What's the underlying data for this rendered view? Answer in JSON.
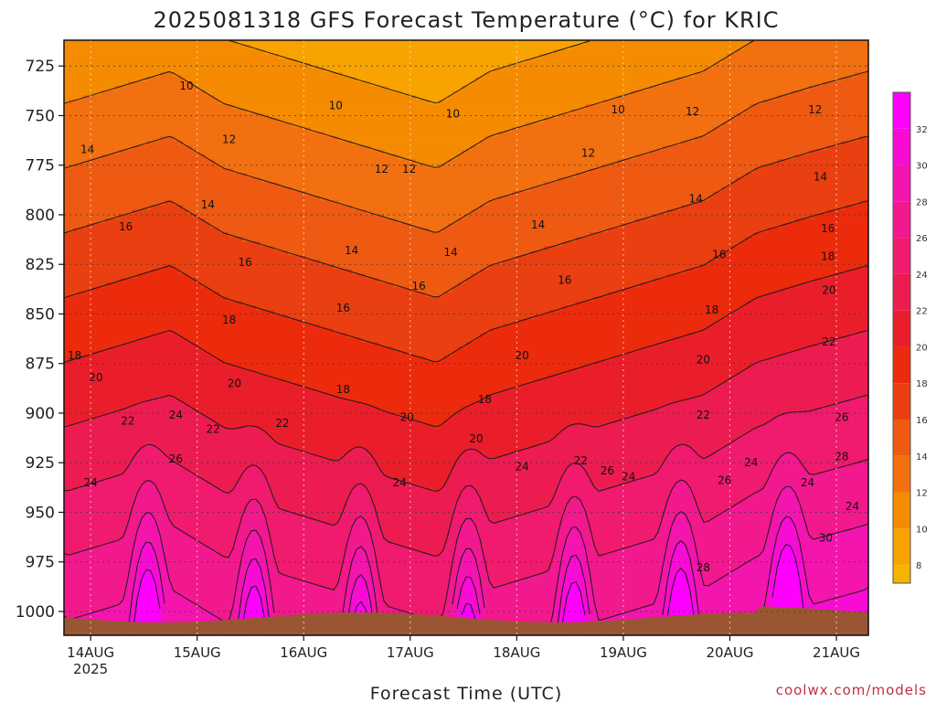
{
  "chart_data": {
    "type": "heatmap",
    "title": "2025081318 GFS Forecast Temperature (°C) for KRIC",
    "xlabel": "Forecast Time (UTC)",
    "ylabel": "",
    "credit": "coolwx.com/models",
    "y_axis": {
      "reversed": true,
      "ylim": [
        1012,
        712
      ],
      "ticks": [
        725,
        750,
        775,
        800,
        825,
        850,
        875,
        900,
        925,
        950,
        975,
        1000
      ]
    },
    "x_axis": {
      "xlim": [
        0,
        7.55
      ],
      "ticks": [
        {
          "label": "14AUG",
          "sublabel": "2025",
          "day": 0.25
        },
        {
          "label": "15AUG",
          "day": 1.25
        },
        {
          "label": "16AUG",
          "day": 2.25
        },
        {
          "label": "17AUG",
          "day": 3.25
        },
        {
          "label": "18AUG",
          "day": 4.25
        },
        {
          "label": "19AUG",
          "day": 5.25
        },
        {
          "label": "20AUG",
          "day": 6.25
        },
        {
          "label": "21AUG",
          "day": 7.25
        }
      ]
    },
    "grid": true,
    "colorbar": {
      "placement": "right",
      "ticks": [
        8,
        10,
        12,
        14,
        16,
        18,
        20,
        22,
        24,
        26,
        28,
        30,
        32
      ],
      "bands": [
        {
          "min": 7,
          "max": 8,
          "color": "#f5b400"
        },
        {
          "min": 8,
          "max": 10,
          "color": "#f9a300"
        },
        {
          "min": 10,
          "max": 12,
          "color": "#f58b00"
        },
        {
          "min": 12,
          "max": 14,
          "color": "#f27010"
        },
        {
          "min": 14,
          "max": 16,
          "color": "#ee5a12"
        },
        {
          "min": 16,
          "max": 18,
          "color": "#ea3f10"
        },
        {
          "min": 18,
          "max": 20,
          "color": "#ec2a0c"
        },
        {
          "min": 20,
          "max": 22,
          "color": "#ea1e2a"
        },
        {
          "min": 22,
          "max": 24,
          "color": "#ec1c50"
        },
        {
          "min": 24,
          "max": 26,
          "color": "#f01a6e"
        },
        {
          "min": 26,
          "max": 28,
          "color": "#f2188e"
        },
        {
          "min": 28,
          "max": 30,
          "color": "#f414ae"
        },
        {
          "min": 30,
          "max": 32,
          "color": "#f80cd4"
        },
        {
          "min": 32,
          "max": 34,
          "color": "#ff00ff"
        }
      ]
    },
    "ground_color": "#9a5632",
    "profile": {
      "lapse_rate_c_per_hpa": 0.0613,
      "reference_pressure_hpa": 850,
      "series": [
        {
          "day": 0.0,
          "t850": 18.5,
          "diurnal_peak": 7.0
        },
        {
          "day": 0.5,
          "t850": 19.0,
          "diurnal_peak": 6.0
        },
        {
          "day": 1.0,
          "t850": 19.5,
          "diurnal_peak": 7.5
        },
        {
          "day": 1.5,
          "t850": 18.5,
          "diurnal_peak": 5.5
        },
        {
          "day": 2.0,
          "t850": 18.0,
          "diurnal_peak": 7.5
        },
        {
          "day": 2.5,
          "t850": 17.5,
          "diurnal_peak": 5.5
        },
        {
          "day": 3.0,
          "t850": 17.0,
          "diurnal_peak": 7.0
        },
        {
          "day": 3.5,
          "t850": 16.5,
          "diurnal_peak": 5.0
        },
        {
          "day": 4.0,
          "t850": 17.5,
          "diurnal_peak": 7.5
        },
        {
          "day": 4.5,
          "t850": 18.0,
          "diurnal_peak": 5.5
        },
        {
          "day": 5.0,
          "t850": 18.5,
          "diurnal_peak": 8.0
        },
        {
          "day": 5.5,
          "t850": 19.0,
          "diurnal_peak": 5.5
        },
        {
          "day": 6.0,
          "t850": 19.5,
          "diurnal_peak": 8.0
        },
        {
          "day": 6.5,
          "t850": 20.5,
          "diurnal_peak": 6.0
        },
        {
          "day": 7.0,
          "t850": 21.0,
          "diurnal_peak": 8.5
        },
        {
          "day": 7.55,
          "t850": 21.5,
          "diurnal_peak": 6.0
        }
      ]
    },
    "contour_labels": [
      {
        "text": "10",
        "day": 1.15,
        "p": 735
      },
      {
        "text": "10",
        "day": 2.55,
        "p": 745
      },
      {
        "text": "10",
        "day": 3.65,
        "p": 749
      },
      {
        "text": "10",
        "day": 5.2,
        "p": 747
      },
      {
        "text": "12",
        "day": 5.9,
        "p": 748
      },
      {
        "text": "12",
        "day": 7.05,
        "p": 747
      },
      {
        "text": "12",
        "day": 1.55,
        "p": 762
      },
      {
        "text": "12",
        "day": 2.98,
        "p": 777
      },
      {
        "text": "12",
        "day": 3.24,
        "p": 777
      },
      {
        "text": "12",
        "day": 4.92,
        "p": 769
      },
      {
        "text": "14",
        "day": 0.22,
        "p": 767
      },
      {
        "text": "14",
        "day": 1.35,
        "p": 795
      },
      {
        "text": "14",
        "day": 2.7,
        "p": 818
      },
      {
        "text": "14",
        "day": 3.63,
        "p": 819
      },
      {
        "text": "14",
        "day": 4.45,
        "p": 805
      },
      {
        "text": "14",
        "day": 5.93,
        "p": 792
      },
      {
        "text": "14",
        "day": 7.1,
        "p": 781
      },
      {
        "text": "16",
        "day": 0.58,
        "p": 806
      },
      {
        "text": "16",
        "day": 1.7,
        "p": 824
      },
      {
        "text": "16",
        "day": 2.62,
        "p": 847
      },
      {
        "text": "16",
        "day": 3.33,
        "p": 836
      },
      {
        "text": "16",
        "day": 4.7,
        "p": 833
      },
      {
        "text": "16",
        "day": 6.15,
        "p": 820
      },
      {
        "text": "16",
        "day": 7.17,
        "p": 807
      },
      {
        "text": "18",
        "day": 0.1,
        "p": 871
      },
      {
        "text": "18",
        "day": 1.55,
        "p": 853
      },
      {
        "text": "18",
        "day": 2.62,
        "p": 888
      },
      {
        "text": "18",
        "day": 3.95,
        "p": 893
      },
      {
        "text": "18",
        "day": 6.08,
        "p": 848
      },
      {
        "text": "18",
        "day": 7.17,
        "p": 821
      },
      {
        "text": "20",
        "day": 0.3,
        "p": 882
      },
      {
        "text": "20",
        "day": 1.6,
        "p": 885
      },
      {
        "text": "20",
        "day": 3.22,
        "p": 902
      },
      {
        "text": "20",
        "day": 3.87,
        "p": 913
      },
      {
        "text": "20",
        "day": 4.3,
        "p": 871
      },
      {
        "text": "20",
        "day": 6.0,
        "p": 873
      },
      {
        "text": "20",
        "day": 7.18,
        "p": 838
      },
      {
        "text": "22",
        "day": 0.6,
        "p": 904
      },
      {
        "text": "22",
        "day": 1.4,
        "p": 908
      },
      {
        "text": "22",
        "day": 2.05,
        "p": 905
      },
      {
        "text": "22",
        "day": 4.85,
        "p": 924
      },
      {
        "text": "22",
        "day": 6.0,
        "p": 901
      },
      {
        "text": "22",
        "day": 7.18,
        "p": 864
      },
      {
        "text": "24",
        "day": 0.25,
        "p": 935
      },
      {
        "text": "24",
        "day": 1.05,
        "p": 901
      },
      {
        "text": "24",
        "day": 3.15,
        "p": 935
      },
      {
        "text": "24",
        "day": 4.3,
        "p": 927
      },
      {
        "text": "24",
        "day": 5.3,
        "p": 932
      },
      {
        "text": "24",
        "day": 6.45,
        "p": 925
      },
      {
        "text": "24",
        "day": 6.98,
        "p": 935
      },
      {
        "text": "24",
        "day": 7.4,
        "p": 947
      },
      {
        "text": "26",
        "day": 1.05,
        "p": 923
      },
      {
        "text": "26",
        "day": 5.1,
        "p": 929
      },
      {
        "text": "26",
        "day": 6.2,
        "p": 934
      },
      {
        "text": "26",
        "day": 7.3,
        "p": 902
      },
      {
        "text": "28",
        "day": 6.0,
        "p": 978
      },
      {
        "text": "28",
        "day": 7.3,
        "p": 922
      },
      {
        "text": "30",
        "day": 7.15,
        "p": 963
      }
    ]
  }
}
